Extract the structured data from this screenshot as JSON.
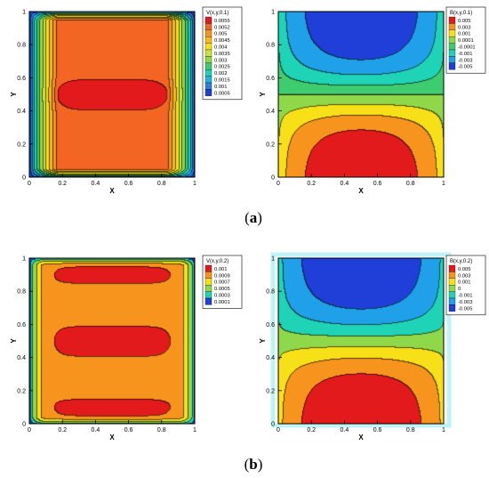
{
  "captions": {
    "a": {
      "open": "(",
      "letter": "a",
      "close": ")"
    },
    "b": {
      "open": "(",
      "letter": "b",
      "close": ")"
    }
  },
  "chart_data": [
    {
      "type": "heatmap",
      "panel": "a-left",
      "field": "V",
      "legend_title": "V(x,y,0.1)",
      "legend_placement": "top-right",
      "xlabel": "X",
      "ylabel": "Y",
      "xlim": [
        0,
        1
      ],
      "ylim": [
        0,
        1
      ],
      "xticks": [
        "0",
        "0.2",
        "0.4",
        "0.6",
        "0.8",
        "1"
      ],
      "yticks": [
        "0",
        "0.2",
        "0.4",
        "0.6",
        "0.8",
        "1"
      ],
      "levels": [
        0.0055,
        0.0052,
        0.005,
        0.0045,
        0.004,
        0.0035,
        0.003,
        0.0025,
        0.002,
        0.0015,
        0.001,
        0.0005
      ],
      "level_labels": [
        "0.0055",
        "0.0052",
        "0.005",
        "0.0045",
        "0.004",
        "0.0035",
        "0.003",
        "0.0025",
        "0.002",
        "0.0015",
        "0.001",
        "0.0005"
      ],
      "level_colors": [
        "#e31a1c",
        "#f26522",
        "#f7941d",
        "#fbb917",
        "#f7e017",
        "#cde53a",
        "#8ed84a",
        "#3fcc6e",
        "#1fd3b7",
        "#1fb4e6",
        "#2f7fe0",
        "#1f3fd8"
      ]
    },
    {
      "type": "heatmap",
      "panel": "a-right",
      "field": "B",
      "legend_title": "B(x,y,0.1)",
      "legend_placement": "top-right",
      "xlabel": "X",
      "ylabel": "Y",
      "xlim": [
        0,
        1
      ],
      "ylim": [
        0,
        1
      ],
      "xticks": [
        "0",
        "0.2",
        "0.4",
        "0.6",
        "0.8",
        "1"
      ],
      "yticks": [
        "0",
        "0.2",
        "0.4",
        "0.6",
        "0.8",
        "1"
      ],
      "levels": [
        0.005,
        0.003,
        0.001,
        0.0001,
        -0.0001,
        -0.001,
        -0.003,
        -0.005
      ],
      "level_labels": [
        "0.005",
        "0.003",
        "0.001",
        "0.0001",
        "-0.0001",
        "-0.001",
        "-0.003",
        "-0.005"
      ],
      "level_colors": [
        "#e31a1c",
        "#f7941d",
        "#f7e017",
        "#8ed84a",
        "#3fcc6e",
        "#1fd3b7",
        "#1fa0e8",
        "#1f3fd8"
      ]
    },
    {
      "type": "heatmap",
      "panel": "b-left",
      "field": "V",
      "legend_title": "V(x,y,0.2)",
      "legend_placement": "top-right",
      "xlabel": "X",
      "ylabel": "Y",
      "xlim": [
        0,
        1
      ],
      "ylim": [
        0,
        1
      ],
      "xticks": [
        "0",
        "0.2",
        "0.4",
        "0.6",
        "0.8",
        "1"
      ],
      "yticks": [
        "0",
        "0.2",
        "0.4",
        "0.6",
        "0.8",
        "1"
      ],
      "levels": [
        0.001,
        0.0009,
        0.0007,
        0.0005,
        0.0003,
        0.0001
      ],
      "level_labels": [
        "0.001",
        "0.0009",
        "0.0007",
        "0.0005",
        "0.0003",
        "0.0001"
      ],
      "level_colors": [
        "#e31a1c",
        "#f7941d",
        "#f7e017",
        "#8ed84a",
        "#1fd3b7",
        "#1f3fd8"
      ]
    },
    {
      "type": "heatmap",
      "panel": "b-right",
      "field": "B",
      "legend_title": "B(x,y,0.2)",
      "legend_placement": "top-right",
      "xlabel": "X",
      "ylabel": "Y",
      "xlim": [
        0,
        1
      ],
      "ylim": [
        0,
        1
      ],
      "xticks": [
        "0",
        "0.2",
        "0.4",
        "0.6",
        "0.8",
        "1"
      ],
      "yticks": [
        "0",
        "0.2",
        "0.4",
        "0.6",
        "0.8",
        "1"
      ],
      "levels": [
        0.005,
        0.003,
        0.001,
        0,
        -0.001,
        -0.003,
        -0.005
      ],
      "level_labels": [
        "0.005",
        "0.003",
        "0.001",
        "0",
        "-0.001",
        "-0.003",
        "-0.005"
      ],
      "level_colors": [
        "#e31a1c",
        "#f7941d",
        "#f7e017",
        "#8ed84a",
        "#1fd3b7",
        "#1fa0e8",
        "#1f3fd8"
      ]
    }
  ]
}
